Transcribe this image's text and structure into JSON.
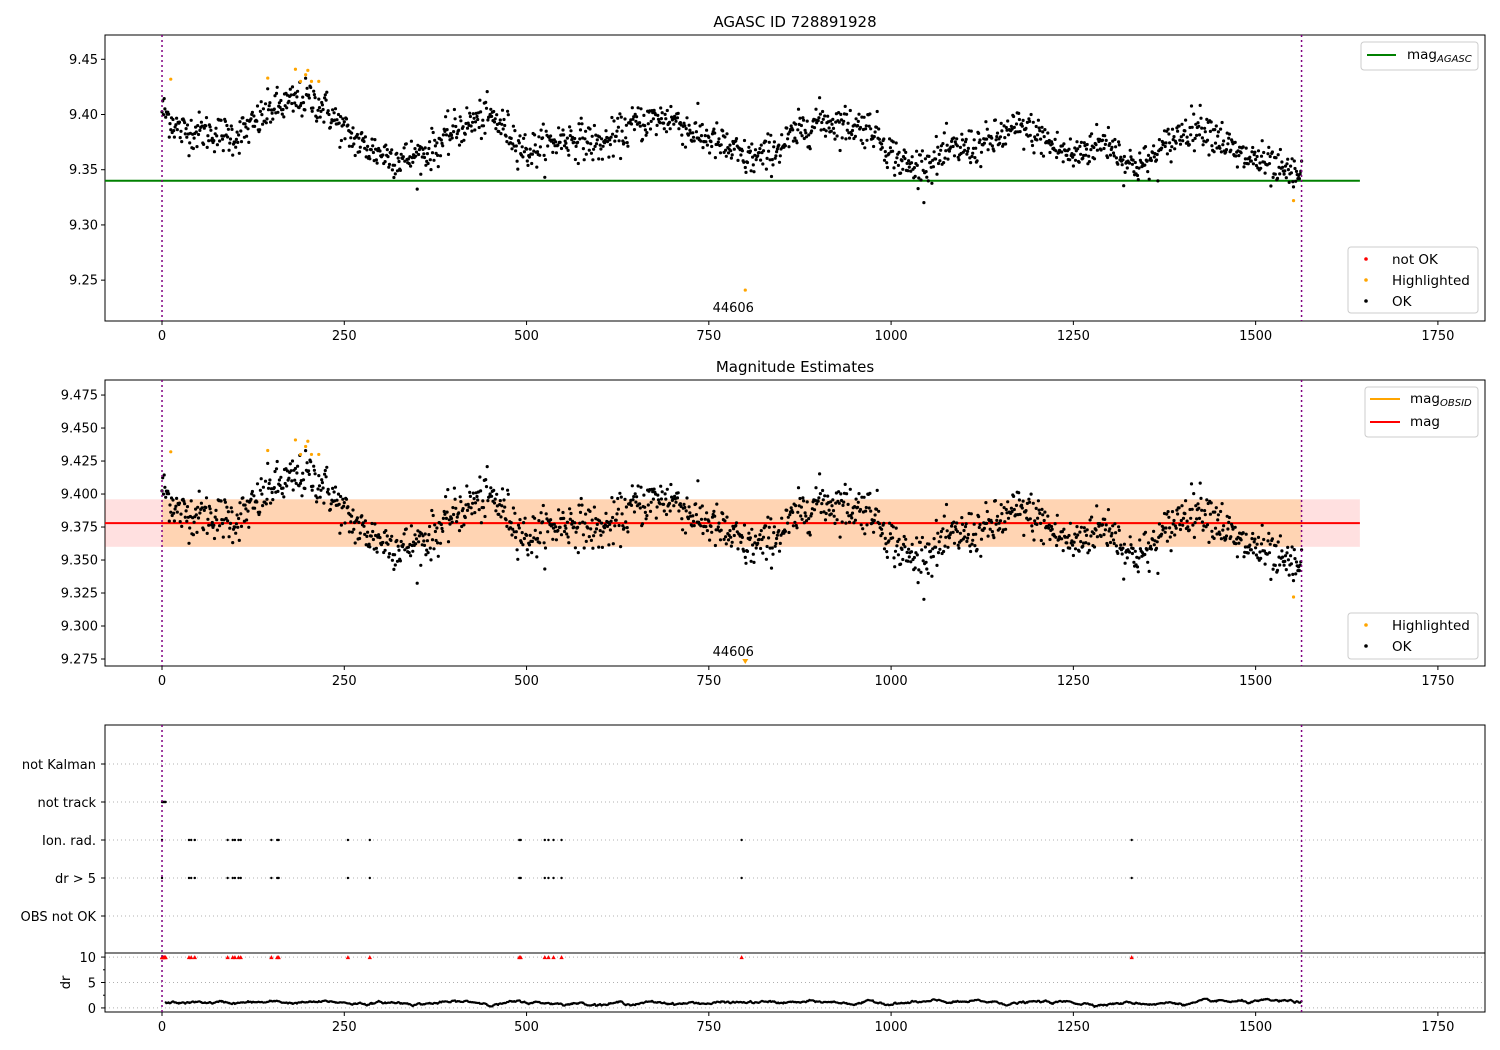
{
  "chart_data": [
    {
      "type": "scatter",
      "title": "AGASC ID 728891928",
      "xlim": [
        -78,
        1815
      ],
      "ylim": [
        9.213,
        9.472
      ],
      "xticks": [
        0,
        250,
        500,
        750,
        1000,
        1250,
        1500,
        1750
      ],
      "yticks": [
        "9.25",
        "9.30",
        "9.35",
        "9.40",
        "9.45"
      ],
      "mag_agasc": 9.34,
      "legend_lines": [
        {
          "label": "mag",
          "sub": "AGASC",
          "color": "#008000"
        }
      ],
      "legend_points": [
        {
          "label": "not OK",
          "color": "#ff0000"
        },
        {
          "label": "Highlighted",
          "color": "#ffa500"
        },
        {
          "label": "OK",
          "color": "#000000"
        }
      ],
      "annotation": {
        "text": "44606",
        "x": 800
      }
    },
    {
      "type": "scatter",
      "title": "Magnitude Estimates",
      "xlim": [
        -78,
        1815
      ],
      "ylim": [
        9.2697,
        9.4864
      ],
      "xticks": [
        0,
        250,
        500,
        750,
        1000,
        1250,
        1500,
        1750
      ],
      "yticks": [
        "9.275",
        "9.300",
        "9.325",
        "9.350",
        "9.375",
        "9.400",
        "9.425",
        "9.450",
        "9.475"
      ],
      "mag": 9.378,
      "mag_band": [
        9.36,
        9.396
      ],
      "legend_lines": [
        {
          "label": "mag",
          "sub": "OBSID",
          "color": "#ffa500"
        },
        {
          "label": "mag",
          "sub": "",
          "color": "#ff0000"
        }
      ],
      "legend_points": [
        {
          "label": "Highlighted",
          "color": "#ffa500"
        },
        {
          "label": "OK",
          "color": "#000000"
        }
      ],
      "annotation": {
        "text": "44606",
        "x": 800
      }
    },
    {
      "type": "scatter",
      "title": "",
      "categories": [
        "not Kalman",
        "not track",
        "Ion. rad.",
        "dr > 5",
        "OBS not OK"
      ],
      "dr_label": "dr",
      "dr_ticks": [
        "0",
        "5",
        "10"
      ],
      "dr_ylim": [
        -0.8,
        10.8
      ],
      "xticks": [
        0,
        250,
        500,
        750,
        1000,
        1250,
        1500,
        1750
      ],
      "not_track_x": [
        0,
        1,
        2,
        3,
        4,
        5
      ],
      "flag_x": [
        0,
        37,
        40,
        45,
        90,
        97,
        100,
        105,
        108,
        150,
        158,
        160,
        255,
        285,
        490,
        492,
        525,
        530,
        537,
        548,
        795,
        1330
      ]
    }
  ],
  "series_common": {
    "obsid_range": [
      0,
      1563
    ],
    "trend_step": 25,
    "trend": [
      9.405,
      9.385,
      9.385,
      9.383,
      9.38,
      9.39,
      9.405,
      9.41,
      9.415,
      9.405,
      9.385,
      9.372,
      9.365,
      9.36,
      9.362,
      9.37,
      9.385,
      9.393,
      9.398,
      9.385,
      9.366,
      9.372,
      9.378,
      9.378,
      9.372,
      9.38,
      9.392,
      9.395,
      9.397,
      9.385,
      9.378,
      9.37,
      9.36,
      9.362,
      9.372,
      9.385,
      9.395,
      9.392,
      9.39,
      9.388,
      9.365,
      9.352,
      9.355,
      9.365,
      9.37,
      9.372,
      9.38,
      9.388,
      9.382,
      9.37,
      9.362,
      9.372,
      9.375,
      9.355,
      9.355,
      9.37,
      9.385,
      9.39,
      9.38,
      9.362,
      9.36,
      9.35,
      9.345
    ],
    "noise_sd": 0.0085,
    "highlighted": [
      [
        12,
        9.432
      ],
      [
        145,
        9.433
      ],
      [
        183,
        9.441
      ],
      [
        190,
        9.43
      ],
      [
        197,
        9.436
      ],
      [
        200,
        9.44
      ],
      [
        205,
        9.43
      ],
      [
        215,
        9.43
      ],
      [
        800,
        9.241
      ],
      [
        1552,
        9.322
      ]
    ],
    "colors": {
      "ok": "#000000",
      "highlighted": "#ffa500",
      "not_ok": "#ff0000",
      "agasc": "#008000",
      "mag": "#ff0000",
      "obsid_line": "#800080"
    }
  }
}
